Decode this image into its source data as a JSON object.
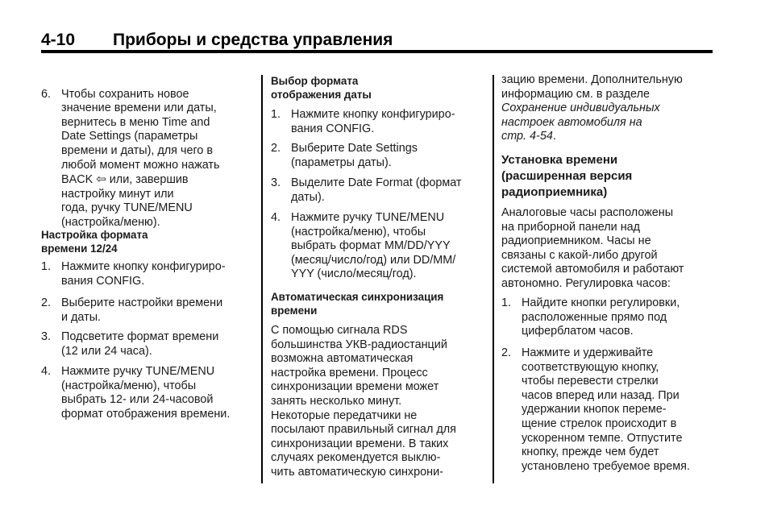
{
  "header": {
    "page_number": "4-10",
    "title": "Приборы и средства управления"
  },
  "col1": {
    "item6": {
      "num": "6.",
      "text_a": "Чтобы сохранить новое\nзначение времени или даты,\nвернитесь в меню Time and\nDate Settings (параметры\nвремени и даты), для чего в\nлюбой момент можно нажать\nBACK ",
      "text_b": " или, завершив\nнастройку минут или\nгода, ручку TUNE/MENU\n(настройка/меню).",
      "icon": "back-arrow-icon"
    },
    "heading": "Настройка формата\nвремени 12/24",
    "items": [
      {
        "num": "1.",
        "text": "Нажмите кнопку конфигуриро-\nвания CONFIG."
      },
      {
        "num": "2.",
        "text": "Выберите настройки времени\nи даты."
      },
      {
        "num": "3.",
        "text": "Подсветите формат времени\n(12 или 24 часа)."
      },
      {
        "num": "4.",
        "text": "Нажмите ручку TUNE/MENU\n(настройка/меню), чтобы\nвыбрать 12- или 24-часовой\nформат отображения времени."
      }
    ]
  },
  "col2": {
    "heading": "Выбор формата\nотображения даты",
    "items": [
      {
        "num": "1.",
        "text": "Нажмите кнопку конфигуриро-\nвания CONFIG."
      },
      {
        "num": "2.",
        "text": "Выберите Date Settings\n(параметры даты)."
      },
      {
        "num": "3.",
        "text": "Выделите Date Format (формат\nдаты)."
      },
      {
        "num": "4.",
        "text": "Нажмите ручку TUNE/MENU\n(настройка/меню), чтобы\nвыбрать формат MM/DD/YYY\n(месяц/число/год) или DD/MM/\nYYY (число/месяц/год)."
      }
    ],
    "heading2": "Автоматическая синхронизация\nвремени",
    "para": "С помощью сигнала RDS\nбольшинства УКВ-радиостанций\nвозможна автоматическая\nнастройка времени. Процесс\nсинхронизации времени может\nзанять несколько минут.\nНекоторые передатчики не\nпосылают правильный сигнал для\nсинхронизации времени. В таких\nслучаях рекомендуется выклю-\nчить автоматическую синхрони-"
  },
  "col3": {
    "para_a": "зацию времени. Дополнительную\nинформацию см. в разделе\n",
    "para_link": "Сохранение индивидуальных\nнастроек автомобиля на\nстр. 4-54",
    "para_b": ".",
    "heading": "Установка времени\n(расширенная версия\nрадиоприемника)",
    "para2": "Аналоговые часы расположены\nна приборной панели над\nрадиоприемником. Часы не\nсвязаны с какой-либо другой\nсистемой автомобиля и работают\nавтономно. Регулировка часов:",
    "items": [
      {
        "num": "1.",
        "text": "Найдите кнопки регулировки,\nрасположенные прямо под\nциферблатом часов."
      },
      {
        "num": "2.",
        "text": "Нажмите и удерживайте\nсоответствующую кнопку,\nчтобы перевести стрелки\nчасов вперед или назад. При\nудержании кнопок переме-\nщение стрелок происходит в\nускоренном темпе. Отпустите\nкнопку, прежде чем будет\nустановлено требуемое время."
      }
    ]
  }
}
